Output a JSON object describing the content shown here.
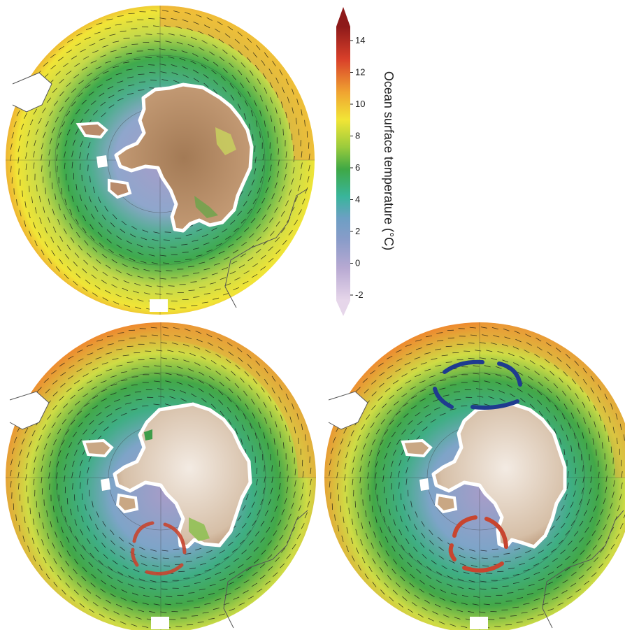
{
  "chart_data": {
    "type": "heatmap",
    "panels": [
      {
        "arrows": "none"
      },
      {
        "arrows": "red-clockwise"
      },
      {
        "arrows": "blue-and-red"
      }
    ],
    "colorbar": {
      "title": "Ocean surface temperature (°C)",
      "ticks": [
        "14",
        "12",
        "10",
        "8",
        "6",
        "4",
        "2",
        "0",
        "-2"
      ],
      "range": [
        -2,
        15
      ],
      "colors": [
        "#e6d6ea",
        "#a89cc8",
        "#6d9fc4",
        "#39b59b",
        "#3fa845",
        "#9acb3c",
        "#f1e536",
        "#f0a431",
        "#d9402a",
        "#8e1a1a"
      ]
    },
    "colors": {
      "land": "#b98b6b",
      "land_light": "#e9dccf",
      "blue_arrow": "#1f3b8f",
      "red_arrow": "#c8452f"
    }
  }
}
